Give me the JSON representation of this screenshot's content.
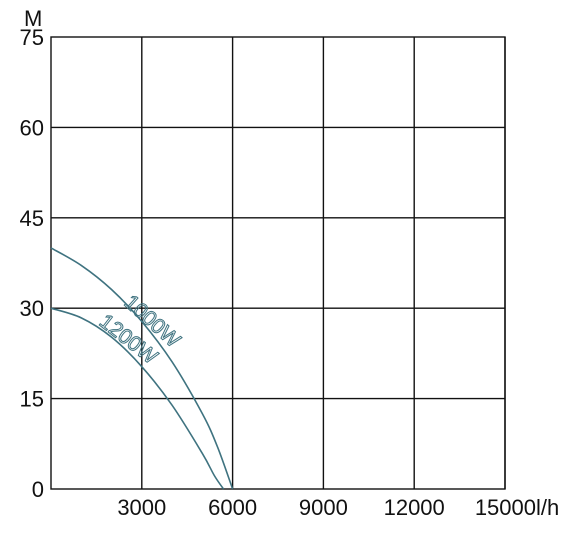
{
  "chart_data": {
    "type": "line",
    "ylabel": "M",
    "xlabel": "l/h",
    "xlim": [
      0,
      15000
    ],
    "ylim": [
      0,
      75
    ],
    "x_ticks": [
      3000,
      6000,
      9000,
      12000,
      15000
    ],
    "x_tick_labels": [
      "3000",
      "6000",
      "9000",
      "12000",
      "15000"
    ],
    "y_ticks": [
      0,
      15,
      30,
      45,
      60,
      75
    ],
    "y_tick_labels": [
      "0",
      "15",
      "30",
      "45",
      "60",
      "75"
    ],
    "grid": true,
    "colors": {
      "axis": "#111111",
      "series": "#3f7380"
    },
    "series": [
      {
        "name": "1000W",
        "x": [
          0,
          1000,
          2000,
          3000,
          4000,
          5000,
          5500,
          6000
        ],
        "y": [
          40,
          37.1,
          33.1,
          27.8,
          21.1,
          12.5,
          7,
          0
        ]
      },
      {
        "name": "1200W",
        "x": [
          0,
          1000,
          2000,
          3000,
          4000,
          5000,
          5400,
          5700
        ],
        "y": [
          30,
          28.4,
          25.2,
          20.3,
          13.9,
          5.9,
          2.2,
          0
        ]
      }
    ]
  }
}
